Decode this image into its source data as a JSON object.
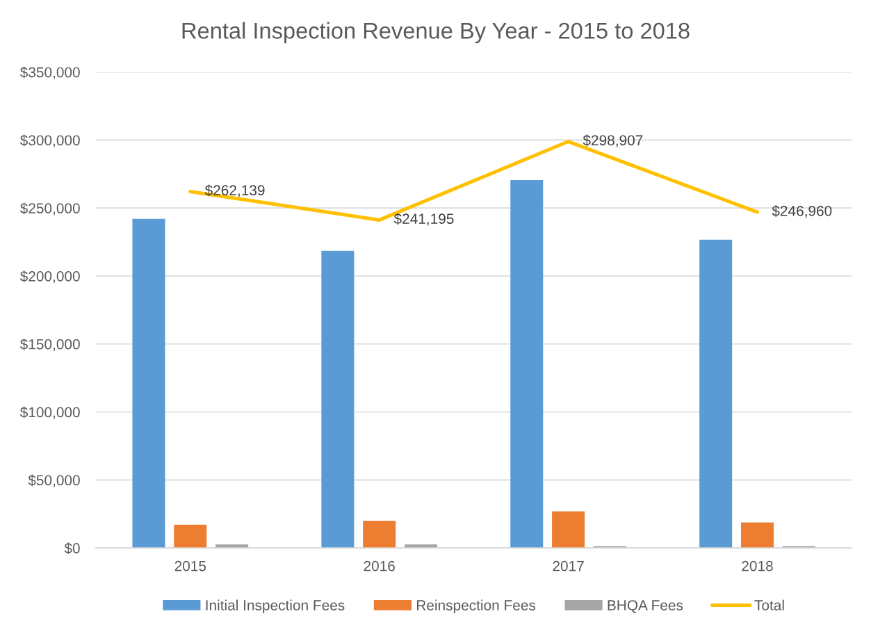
{
  "chart_data": {
    "type": "bar",
    "title": "Rental Inspection Revenue By Year - 2015 to 2018",
    "categories": [
      "2015",
      "2016",
      "2017",
      "2018"
    ],
    "series": [
      {
        "name": "Initial Inspection Fees",
        "color": "#5b9bd5",
        "values": [
          242000,
          218500,
          270500,
          226700
        ]
      },
      {
        "name": "Reinspection Fees",
        "color": "#ed7d31",
        "values": [
          17100,
          20000,
          26900,
          18700
        ]
      },
      {
        "name": "BHQA Fees",
        "color": "#a5a5a5",
        "values": [
          2600,
          2600,
          1300,
          1300
        ]
      },
      {
        "name": "Total",
        "type": "line",
        "color": "#ffc000",
        "values": [
          262139,
          241195,
          298907,
          246960
        ],
        "value_labels": [
          "$262,139",
          "$241,195",
          "$298,907",
          "$246,960"
        ]
      }
    ],
    "ylim": [
      0,
      350000
    ],
    "yticks": [
      {
        "value": 0,
        "label": "$0"
      },
      {
        "value": 50000,
        "label": "$50,000"
      },
      {
        "value": 100000,
        "label": "$100,000"
      },
      {
        "value": 150000,
        "label": "$150,000"
      },
      {
        "value": 200000,
        "label": "$200,000"
      },
      {
        "value": 250000,
        "label": "$250,000"
      },
      {
        "value": 300000,
        "label": "$300,000"
      },
      {
        "value": 350000,
        "label": "$350,000"
      }
    ],
    "grid": "y",
    "legend": "bottom"
  }
}
